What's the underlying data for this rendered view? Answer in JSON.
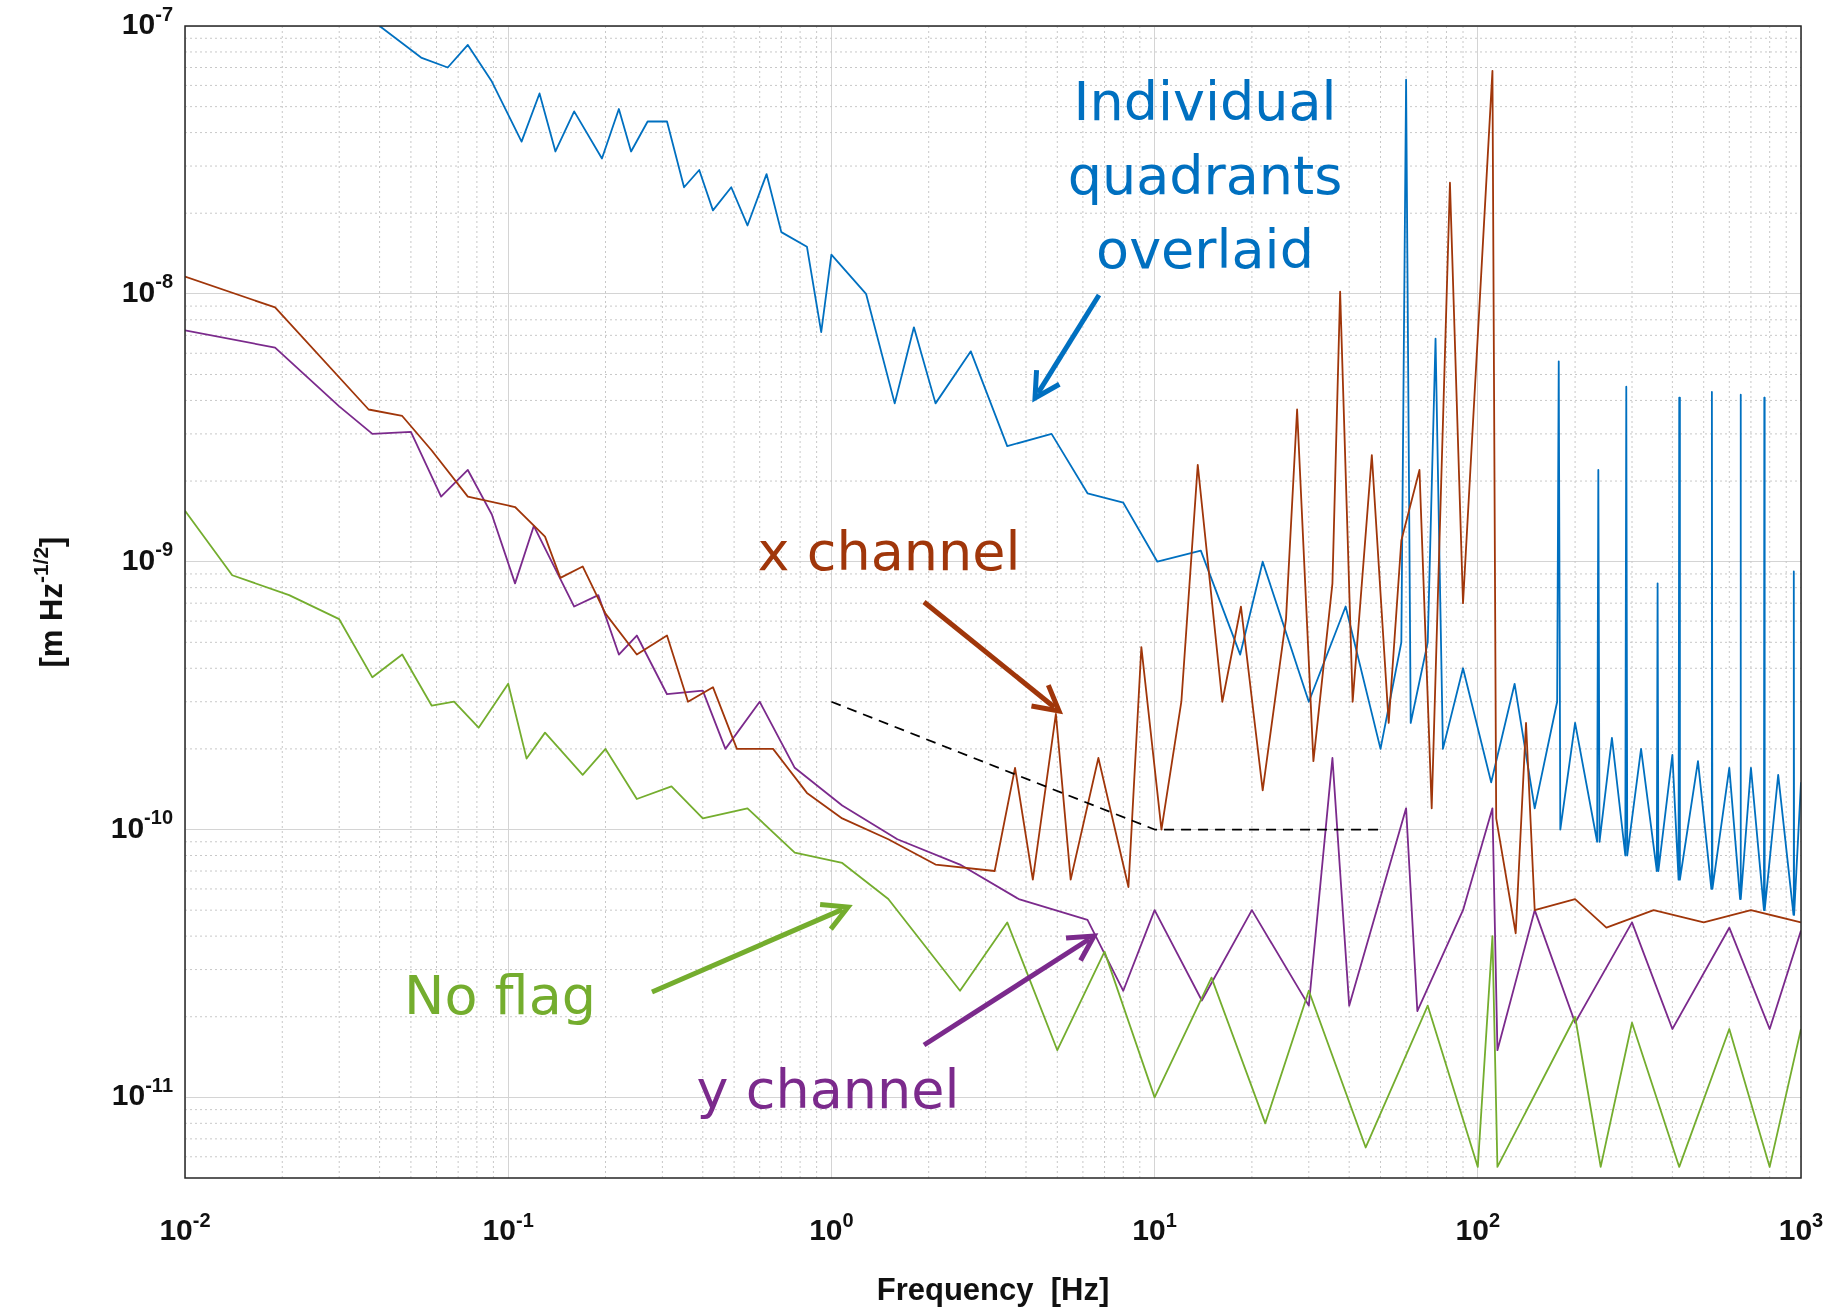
{
  "chart_data": {
    "type": "line",
    "xlabel": "Frequency  [Hz]",
    "ylabel": "[m Hz$^{-1/2}$]",
    "log": "xy",
    "grid": true,
    "line_style": "solid",
    "xlim": [
      0.01,
      1000
    ],
    "ylim": [
      5e-12,
      1e-07
    ],
    "xticks": [
      {
        "value": 0.01,
        "label": "10$^{-2}$"
      },
      {
        "value": 0.1,
        "label": "10$^{-1}$"
      },
      {
        "value": 1,
        "label": "10$^{0}$"
      },
      {
        "value": 10,
        "label": "10$^{1}$"
      },
      {
        "value": 100,
        "label": "10$^{2}$"
      },
      {
        "value": 1000,
        "label": "10$^{3}$"
      }
    ],
    "yticks": [
      {
        "value": 1e-11,
        "label": "10$^{-11}$"
      },
      {
        "value": 1e-10,
        "label": "10$^{-10}$"
      },
      {
        "value": 1e-09,
        "label": "10$^{-9}$"
      },
      {
        "value": 1e-08,
        "label": "10$^{-8}$"
      },
      {
        "value": 1e-07,
        "label": "10$^{-7}$"
      }
    ],
    "series": [
      {
        "name": "Individual quadrants overlaid",
        "color": "#0070c0",
        "x": [
          0.04,
          0.054,
          0.065,
          0.075,
          0.089,
          0.11,
          0.125,
          0.14,
          0.16,
          0.195,
          0.22,
          0.24,
          0.27,
          0.31,
          0.35,
          0.39,
          0.43,
          0.49,
          0.55,
          0.63,
          0.7,
          0.84,
          0.93,
          1,
          1.28,
          1.57,
          1.8,
          2.1,
          2.7,
          3.5,
          4.8,
          6.2,
          8,
          10.2,
          13.9,
          18.4,
          21.6,
          30,
          39,
          50,
          58,
          60,
          62,
          70,
          74,
          78,
          90,
          110,
          130,
          150,
          176,
          178,
          180,
          200,
          234,
          236,
          238,
          260,
          286,
          288,
          290,
          320,
          358,
          360,
          362,
          400,
          418,
          420,
          422,
          480,
          528,
          530,
          532,
          600,
          648,
          650,
          652,
          700,
          768,
          770,
          772,
          850,
          948,
          950,
          952,
          1000
        ],
        "values": [
          1e-07,
          7.6e-08,
          7e-08,
          8.5e-08,
          6.2e-08,
          3.7e-08,
          5.6e-08,
          3.4e-08,
          4.8e-08,
          3.2e-08,
          4.9e-08,
          3.4e-08,
          4.4e-08,
          4.4e-08,
          2.5e-08,
          2.9e-08,
          2.05e-08,
          2.5e-08,
          1.8e-08,
          2.8e-08,
          1.7e-08,
          1.5e-08,
          7.2e-09,
          1.4e-08,
          1e-08,
          3.9e-09,
          7.5e-09,
          3.9e-09,
          6.1e-09,
          2.7e-09,
          3e-09,
          1.8e-09,
          1.66e-09,
          1e-09,
          1.1e-09,
          4.5e-10,
          1e-09,
          3e-10,
          6.8e-10,
          2e-10,
          5e-10,
          6.3e-08,
          2.5e-10,
          5e-10,
          6.8e-09,
          2e-10,
          4e-10,
          1.5e-10,
          3.5e-10,
          1.2e-10,
          3e-10,
          5.6e-09,
          1e-10,
          2.5e-10,
          9e-11,
          2.2e-09,
          9e-11,
          2.2e-10,
          8e-11,
          4.5e-09,
          8e-11,
          2e-10,
          7e-11,
          8.3e-10,
          7e-11,
          1.9e-10,
          6.5e-11,
          4.1e-09,
          6.5e-11,
          1.8e-10,
          6e-11,
          4.3e-09,
          6e-11,
          1.7e-10,
          5.5e-11,
          4.2e-09,
          5.5e-11,
          1.7e-10,
          5e-11,
          4.1e-09,
          5e-11,
          1.6e-10,
          4.8e-11,
          9.2e-10,
          4.8e-11,
          1.5e-10
        ]
      },
      {
        "name": "y channel",
        "color": "#7b2a8c",
        "x": [
          0.01,
          0.019,
          0.03,
          0.038,
          0.05,
          0.062,
          0.075,
          0.089,
          0.105,
          0.12,
          0.16,
          0.19,
          0.22,
          0.25,
          0.31,
          0.4,
          0.47,
          0.6,
          0.77,
          1.08,
          1.6,
          2.5,
          3.8,
          6.2,
          8,
          10,
          14,
          20,
          30,
          35.5,
          40,
          60,
          65,
          90,
          111,
          115,
          150,
          200,
          300,
          400,
          600,
          800,
          1000
        ],
        "values": [
          7.3e-09,
          6.3e-09,
          3.8e-09,
          3e-09,
          3.05e-09,
          1.75e-09,
          2.2e-09,
          1.5e-09,
          8.3e-10,
          1.36e-09,
          6.8e-10,
          7.5e-10,
          4.5e-10,
          5.3e-10,
          3.2e-10,
          3.3e-10,
          2e-10,
          3e-10,
          1.7e-10,
          1.23e-10,
          9.2e-11,
          7.4e-11,
          5.5e-11,
          4.6e-11,
          2.5e-11,
          5e-11,
          2.3e-11,
          5e-11,
          2.2e-11,
          1.85e-10,
          2.2e-11,
          1.2e-10,
          2.1e-11,
          5e-11,
          1.2e-10,
          1.5e-11,
          5e-11,
          1.9e-11,
          4.5e-11,
          1.8e-11,
          4.3e-11,
          1.8e-11,
          4.2e-11
        ]
      },
      {
        "name": "No flag",
        "color": "#74ad2e",
        "x": [
          0.01,
          0.014,
          0.021,
          0.03,
          0.038,
          0.047,
          0.058,
          0.068,
          0.081,
          0.1,
          0.114,
          0.13,
          0.17,
          0.2,
          0.25,
          0.32,
          0.4,
          0.55,
          0.77,
          1.08,
          1.5,
          2.5,
          3.5,
          5,
          7,
          10,
          15,
          22,
          30,
          45,
          70,
          100,
          111,
          115,
          200,
          240,
          300,
          420,
          600,
          800,
          1000
        ],
        "values": [
          1.55e-09,
          8.9e-10,
          7.5e-10,
          6.1e-10,
          3.7e-10,
          4.5e-10,
          2.9e-10,
          3e-10,
          2.4e-10,
          3.5e-10,
          1.84e-10,
          2.3e-10,
          1.6e-10,
          2e-10,
          1.3e-10,
          1.45e-10,
          1.1e-10,
          1.2e-10,
          8.2e-11,
          7.5e-11,
          5.5e-11,
          2.5e-11,
          4.5e-11,
          1.5e-11,
          3.5e-11,
          1e-11,
          2.8e-11,
          8e-12,
          2.5e-11,
          6.5e-12,
          2.2e-11,
          5.5e-12,
          4e-11,
          5.5e-12,
          2e-11,
          5.5e-12,
          1.9e-11,
          5.5e-12,
          1.8e-11,
          5.5e-12,
          1.8e-11
        ]
      },
      {
        "name": "x channel",
        "color": "#a0360a",
        "x": [
          0.01,
          0.019,
          0.037,
          0.047,
          0.058,
          0.075,
          0.105,
          0.13,
          0.145,
          0.17,
          0.2,
          0.25,
          0.31,
          0.36,
          0.43,
          0.51,
          0.66,
          0.84,
          1.08,
          1.5,
          2.1,
          3.2,
          3.7,
          4.2,
          4.95,
          5.5,
          6.7,
          8.3,
          9.1,
          10.5,
          12.1,
          13.6,
          16.2,
          18.5,
          21.6,
          25.5,
          27.6,
          31,
          35.5,
          37.5,
          41,
          47,
          53,
          58,
          66,
          72,
          82,
          90,
          111,
          114,
          131,
          141,
          150,
          200,
          250,
          350,
          500,
          700,
          1000
        ],
        "values": [
          1.16e-08,
          8.9e-09,
          3.7e-09,
          3.5e-09,
          2.6e-09,
          1.75e-09,
          1.6e-09,
          1.24e-09,
          8.7e-10,
          9.6e-10,
          6.4e-10,
          4.5e-10,
          5.3e-10,
          3e-10,
          3.4e-10,
          2e-10,
          2e-10,
          1.37e-10,
          1.1e-10,
          9.2e-11,
          7.4e-11,
          7e-11,
          1.7e-10,
          6.5e-11,
          2.7e-10,
          6.5e-11,
          1.85e-10,
          6.1e-11,
          4.8e-10,
          1e-10,
          3e-10,
          2.3e-09,
          3e-10,
          6.8e-10,
          1.4e-10,
          6.1e-10,
          3.7e-09,
          1.8e-10,
          8.3e-10,
          1.02e-08,
          3e-10,
          2.5e-09,
          2.5e-10,
          1.2e-09,
          2.2e-09,
          1.2e-10,
          2.6e-08,
          7e-10,
          6.8e-08,
          1.1e-10,
          4.1e-11,
          2.5e-10,
          5e-11,
          5.5e-11,
          4.3e-11,
          5e-11,
          4.5e-11,
          5e-11,
          4.5e-11
        ]
      },
      {
        "color": "#000000",
        "line_style": "dashed",
        "x": [
          1,
          10,
          50
        ],
        "values": [
          3e-10,
          1e-10,
          1e-10
        ]
      }
    ]
  }
}
